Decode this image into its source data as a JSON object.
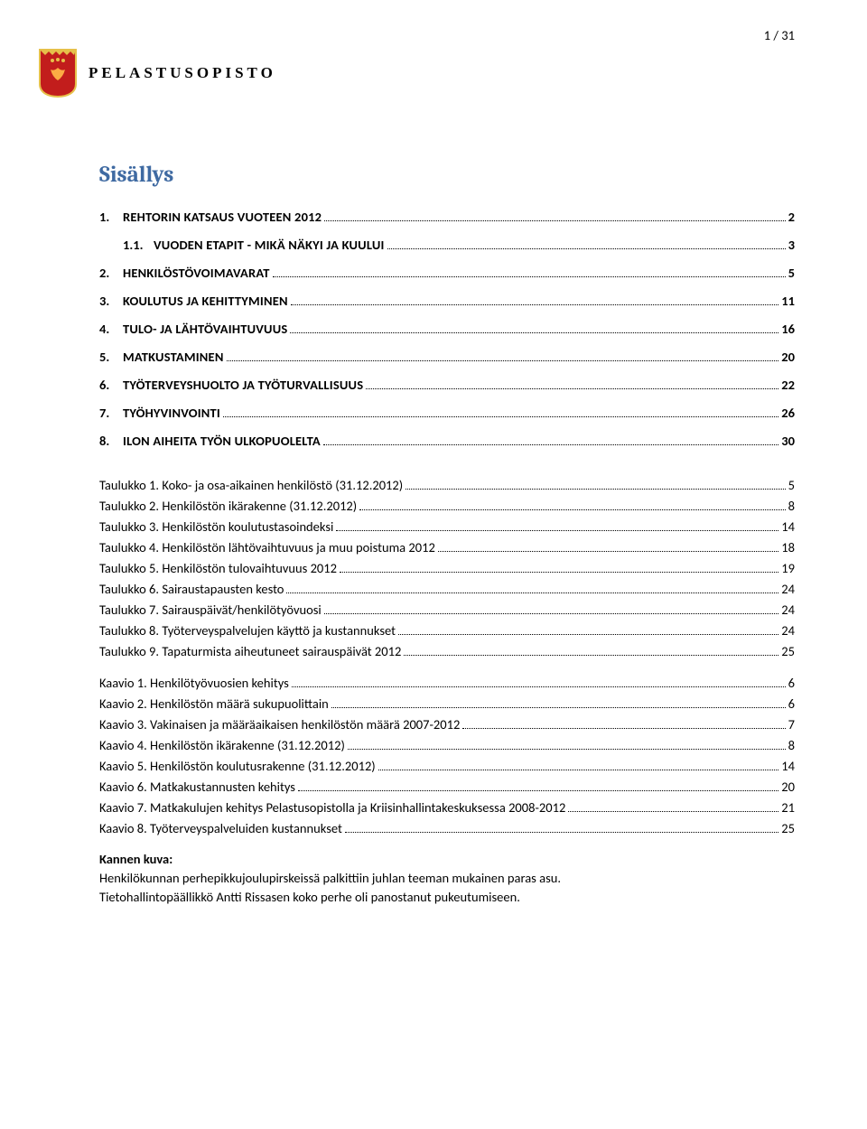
{
  "page_number": "1 / 31",
  "brand_text": "PELASTUSOPISTO",
  "logo": {
    "shield_fill": "#c21d1c",
    "shield_border": "#e6c04a",
    "icon_fill": "#e6c04a"
  },
  "title": "Sisällys",
  "toc_main": [
    {
      "num": "1.",
      "label": "REHTORIN KATSAUS VUOTEEN 2012",
      "page": "2",
      "sub_num": "1.1.",
      "sub_label": "VUODEN ETAPIT - MIKÄ NÄKYI JA KUULUI",
      "sub_page": "3"
    },
    {
      "num": "2.",
      "label": "HENKILÖSTÖVOIMAVARAT",
      "page": "5"
    },
    {
      "num": "3.",
      "label": "KOULUTUS JA KEHITTYMINEN",
      "page": "11"
    },
    {
      "num": "4.",
      "label": "TULO- JA LÄHTÖVAIHTUVUUS",
      "page": "16"
    },
    {
      "num": "5.",
      "label": "MATKUSTAMINEN",
      "page": "20"
    },
    {
      "num": "6.",
      "label": "TYÖTERVEYSHUOLTO JA TYÖTURVALLISUUS",
      "page": "22"
    },
    {
      "num": "7.",
      "label": "TYÖHYVINVOINTI",
      "page": "26"
    },
    {
      "num": "8.",
      "label": "ILON AIHEITA TYÖN ULKOPUOLELTA",
      "page": "30"
    }
  ],
  "toc_tables": [
    {
      "label": "Taulukko 1. Koko- ja osa-aikainen henkilöstö (31.12.2012)",
      "page": "5"
    },
    {
      "label": "Taulukko 2. Henkilöstön ikärakenne (31.12.2012)",
      "page": "8"
    },
    {
      "label": "Taulukko 3. Henkilöstön koulutustasoindeksi",
      "page": "14"
    },
    {
      "label": "Taulukko 4. Henkilöstön lähtövaihtuvuus ja muu poistuma 2012",
      "page": "18"
    },
    {
      "label": "Taulukko 5. Henkilöstön tulovaihtuvuus 2012",
      "page": "19"
    },
    {
      "label": "Taulukko 6. Sairaustapausten kesto",
      "page": "24"
    },
    {
      "label": "Taulukko 7. Sairauspäivät/henkilötyövuosi",
      "page": "24"
    },
    {
      "label": "Taulukko 8. Työterveyspalvelujen käyttö ja kustannukset",
      "page": "24"
    },
    {
      "label": "Taulukko 9. Tapaturmista aiheutuneet sairauspäivät 2012",
      "page": "25"
    }
  ],
  "toc_charts": [
    {
      "label": "Kaavio 1. Henkilötyövuosien kehitys",
      "page": "6"
    },
    {
      "label": "Kaavio 2. Henkilöstön määrä sukupuolittain",
      "page": "6"
    },
    {
      "label": "Kaavio 3. Vakinaisen ja määräaikaisen henkilöstön määrä 2007-2012",
      "page": "7"
    },
    {
      "label": "Kaavio 4. Henkilöstön ikärakenne (31.12.2012)",
      "page": "8"
    },
    {
      "label": "Kaavio 5. Henkilöstön koulutusrakenne (31.12.2012)",
      "page": "14"
    },
    {
      "label": "Kaavio 6. Matkakustannusten kehitys",
      "page": "20"
    },
    {
      "label": "Kaavio 7. Matkakulujen kehitys Pelastusopistolla ja Kriisinhallintakeskuksessa 2008-2012",
      "page": "21"
    },
    {
      "label": "Kaavio 8. Työterveyspalveluiden kustannukset",
      "page": "25"
    }
  ],
  "footer": {
    "heading": "Kannen kuva:",
    "line1": "Henkilökunnan perhepikkujoulupirskeissä palkittiin juhlan teeman mukainen paras asu.",
    "line2": "Tietohallintopäällikkö Antti Rissasen koko perhe oli panostanut pukeutumiseen."
  }
}
